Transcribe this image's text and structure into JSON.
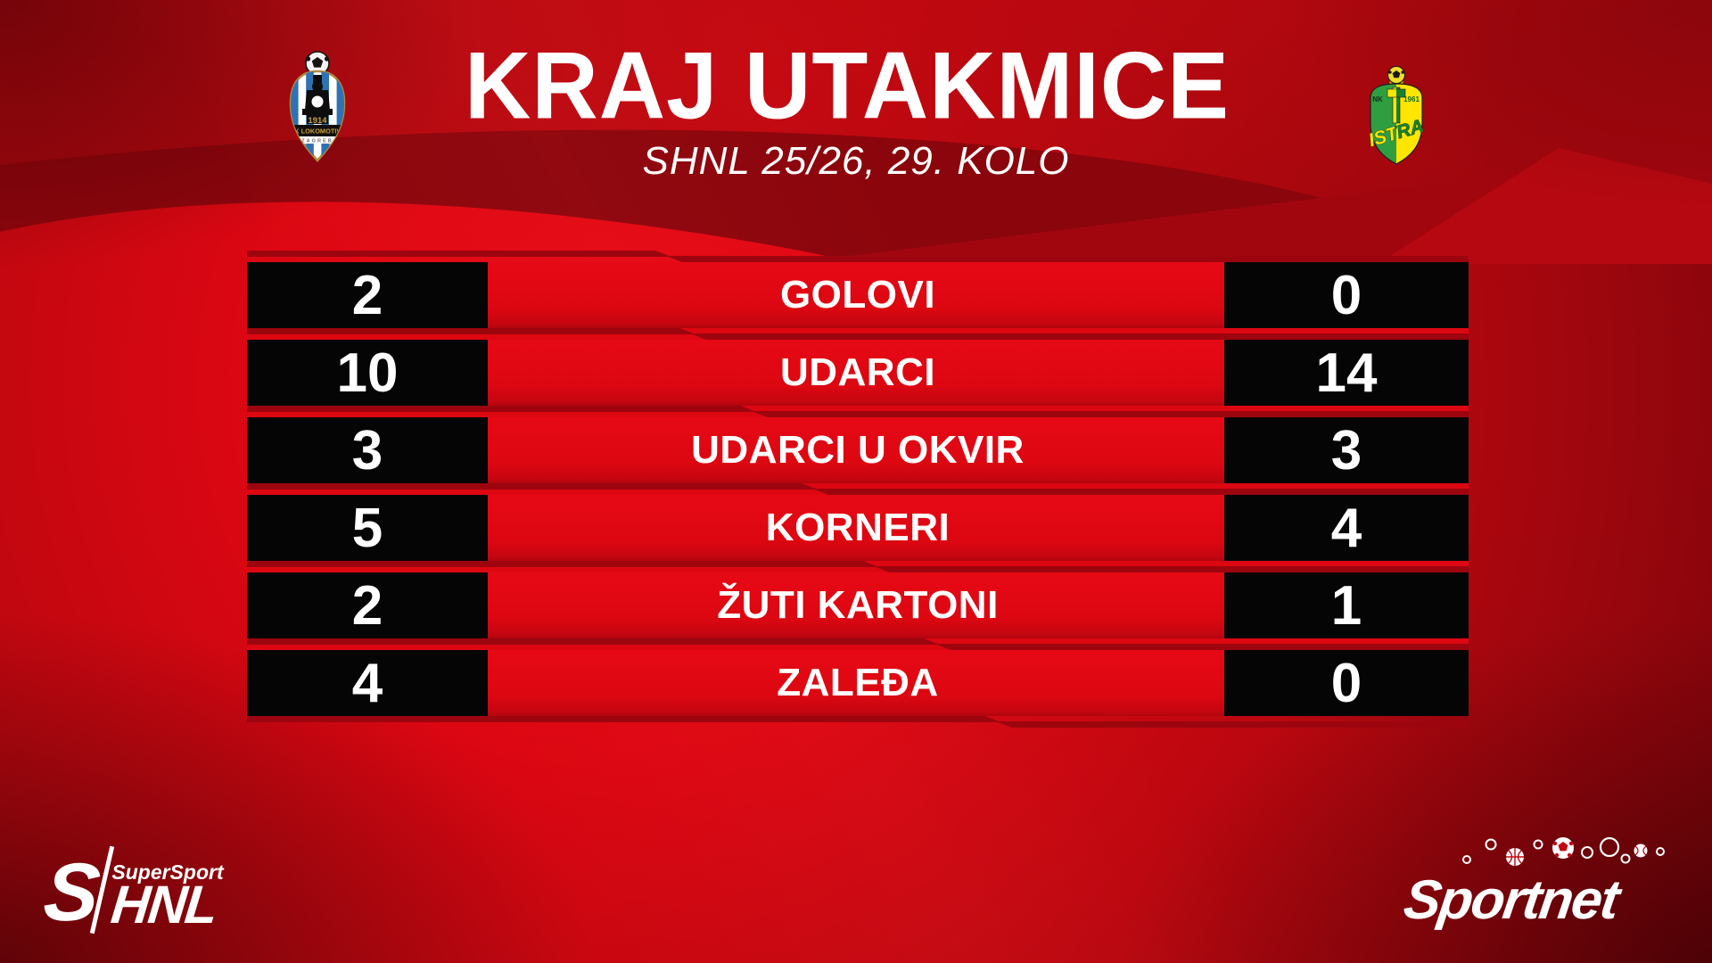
{
  "header": {
    "title": "KRAJ UTAKMICE",
    "subtitle": "SHNL 25/26, 29. KOLO",
    "home_team": {
      "name": "NK Lokomotiva Zagreb",
      "crest_year": "1914",
      "crest_name": "NK LOKOMOTIVA",
      "crest_city": "ZAGREB"
    },
    "away_team": {
      "name": "NK Istra 1961",
      "crest_prefix": "NK",
      "crest_year": "1961",
      "crest_name": "ISTRA"
    }
  },
  "chart_data": {
    "type": "table",
    "title": "KRAJ UTAKMICE",
    "subtitle": "SHNL 25/26, 29. KOLO",
    "categories": [
      "GOLOVI",
      "UDARCI",
      "UDARCI U OKVIR",
      "KORNERI",
      "ŽUTI KARTONI",
      "ZALEĐA"
    ],
    "series": [
      {
        "name": "NK Lokomotiva Zagreb",
        "side": "home",
        "values": [
          2,
          10,
          3,
          5,
          2,
          4
        ]
      },
      {
        "name": "NK Istra 1961",
        "side": "away",
        "values": [
          0,
          14,
          3,
          4,
          1,
          0
        ]
      }
    ],
    "legend_position": "none",
    "grid": false
  },
  "table": {
    "rows": [
      {
        "label": "GOLOVI",
        "home": "2",
        "away": "0"
      },
      {
        "label": "UDARCI",
        "home": "10",
        "away": "14"
      },
      {
        "label": "UDARCI U OKVIR",
        "home": "3",
        "away": "3"
      },
      {
        "label": "KORNERI",
        "home": "5",
        "away": "4"
      },
      {
        "label": "ŽUTI KARTONI",
        "home": "2",
        "away": "1"
      },
      {
        "label": "ZALEĐA",
        "home": "4",
        "away": "0"
      }
    ]
  },
  "footer": {
    "supersport_s": "S",
    "supersport_label": "SuperSport",
    "shnl_label": "HNL",
    "sportnet_label": "Sportnet"
  },
  "colors": {
    "band_red": "#dd0712",
    "stripe_dark": "#9c050e",
    "box_black": "#050505",
    "bg_dark_band": "#8b050c",
    "accent_bright": "#e30613",
    "text_white": "#ffffff"
  }
}
